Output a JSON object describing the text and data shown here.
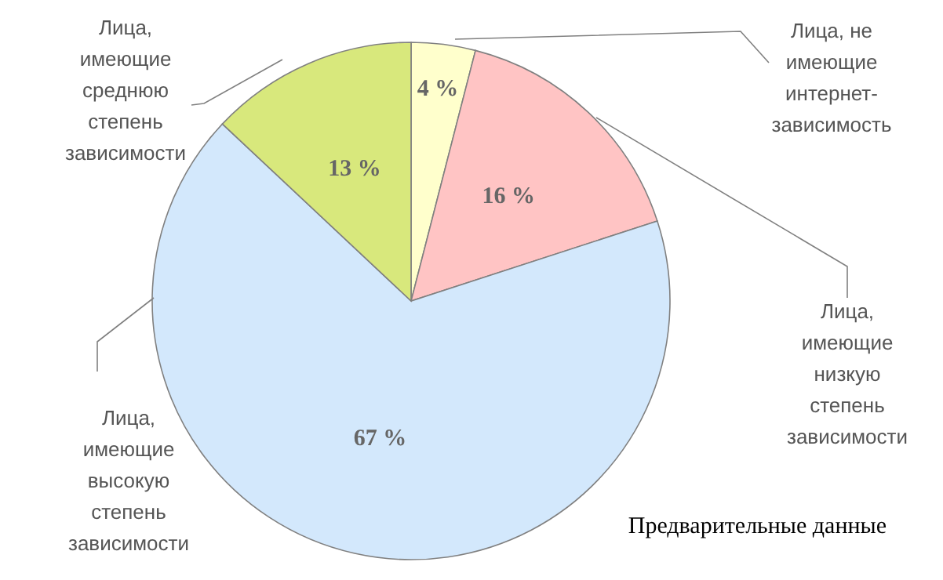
{
  "chart_data": {
    "type": "pie",
    "categories": [
      "Лица, не имеющие интернет-зависимость",
      "Лица, имеющие низкую степень зависимости",
      "Лица, имеющие высокую степень зависимости",
      "Лица, имеющие среднюю степень зависимости"
    ],
    "values": [
      4,
      16,
      67,
      13
    ],
    "colors": [
      "#ffffcc",
      "#ffc4c4",
      "#d3e8fc",
      "#d8e87c"
    ],
    "value_labels": [
      "4 %",
      "16 %",
      "67 %",
      "13 %"
    ],
    "annotations": [
      "Предварительные данные"
    ]
  }
}
